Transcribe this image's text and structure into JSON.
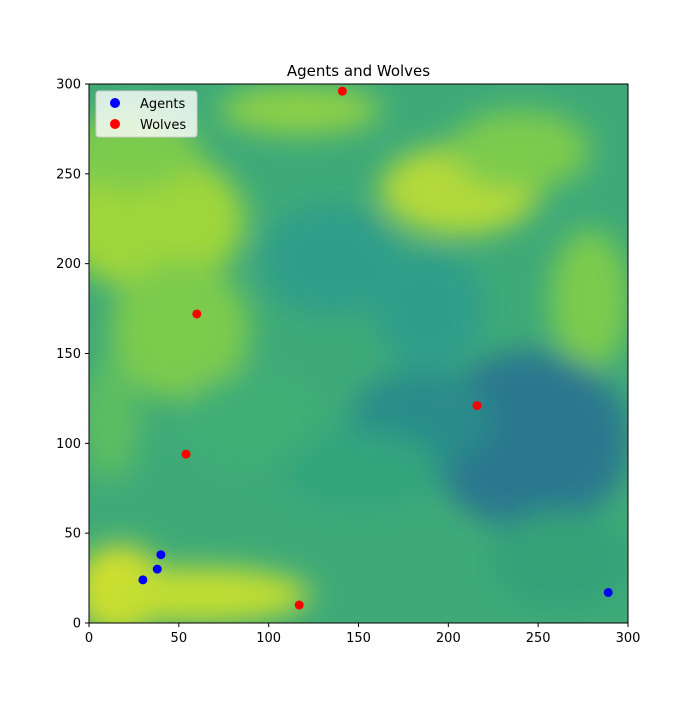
{
  "chart_data": {
    "type": "scatter",
    "title": "Agents and Wolves",
    "xlabel": "",
    "ylabel": "",
    "xlim": [
      0,
      300
    ],
    "ylim": [
      0,
      300
    ],
    "xticks": [
      0,
      50,
      100,
      150,
      200,
      250,
      300
    ],
    "yticks": [
      0,
      50,
      100,
      150,
      200,
      250,
      300
    ],
    "grid": false,
    "legend_position": "top-left",
    "background": "filled contour terrain map (viridis colormap)",
    "series": [
      {
        "name": "Agents",
        "color": "#0000ff",
        "points": [
          [
            30,
            24
          ],
          [
            38,
            30
          ],
          [
            40,
            38
          ],
          [
            289,
            17
          ]
        ]
      },
      {
        "name": "Wolves",
        "color": "#ff0000",
        "points": [
          [
            141,
            296
          ],
          [
            60,
            172
          ],
          [
            216,
            121
          ],
          [
            54,
            94
          ],
          [
            117,
            10
          ]
        ]
      }
    ]
  }
}
